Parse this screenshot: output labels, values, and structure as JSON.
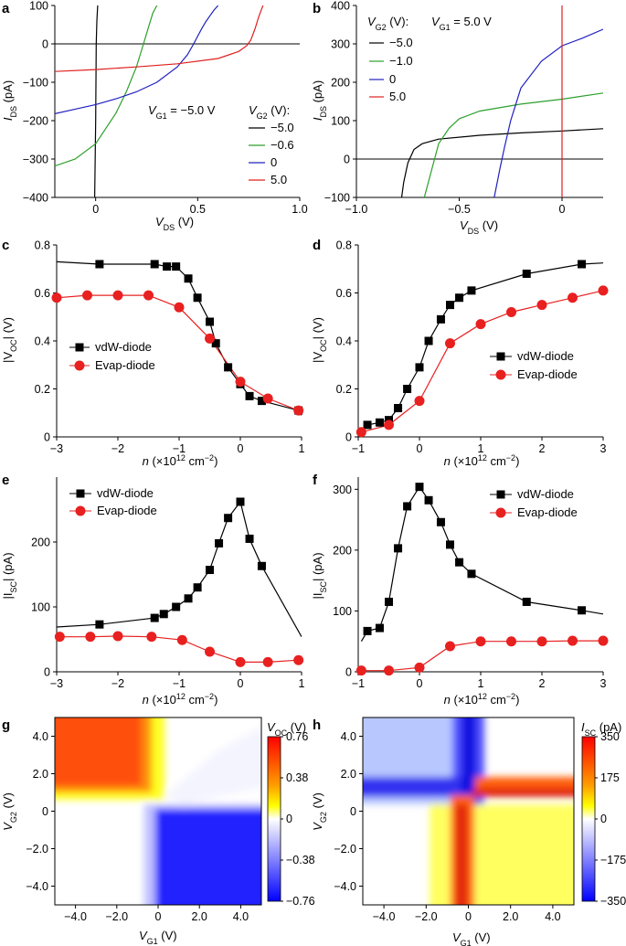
{
  "panels": {
    "a": {
      "letter": "a",
      "xlabel_main": "V",
      "xlabel_sub": "DS",
      "xlabel_unit": " (V)",
      "ylabel_main": "I",
      "ylabel_sub": "DS",
      "ylabel_unit": " (pA)",
      "xticks": [
        "0",
        "0.5",
        "1.0"
      ],
      "yticks": [
        "100",
        "0",
        "−100",
        "−200",
        "−300",
        "−400"
      ],
      "annotation_main": "V",
      "annotation_sub": "G1",
      "annotation_rest": " = −5.0 V",
      "legend_title_main": "V",
      "legend_title_sub": "G2",
      "legend_title_rest": " (V):",
      "legend": [
        "−5.0",
        "−0.6",
        "0",
        "5.0"
      ]
    },
    "b": {
      "letter": "b",
      "xlabel_main": "V",
      "xlabel_sub": "DS",
      "xlabel_unit": " (V)",
      "ylabel_main": "I",
      "ylabel_sub": "DS",
      "ylabel_unit": " (pA)",
      "xticks": [
        "−1.0",
        "−0.5",
        "0"
      ],
      "yticks": [
        "400",
        "300",
        "200",
        "100",
        "0",
        "−100"
      ],
      "annotation_main": "V",
      "annotation_sub": "G1",
      "annotation_rest": " = 5.0 V",
      "legend_title_main": "V",
      "legend_title_sub": "G2",
      "legend_title_rest": " (V):",
      "legend": [
        "−5.0",
        "−1.0",
        "0",
        "5.0"
      ]
    },
    "c": {
      "letter": "c",
      "xlabel_main": "n",
      "xlabel_rest": " (×10",
      "xlabel_sup": "12",
      "xlabel_rest2": " cm",
      "xlabel_sup2": "−2",
      "xlabel_end": ")",
      "ylabel": "|V",
      "ylabel_sub": "OC",
      "ylabel_rest": "| (V)",
      "xticks": [
        "−3",
        "−2",
        "−1",
        "0",
        "1"
      ],
      "yticks": [
        "0.8",
        "0.6",
        "0.4",
        "0.2",
        "0"
      ],
      "legend": [
        "vdW-diode",
        "Evap-diode"
      ]
    },
    "d": {
      "letter": "d",
      "xlabel_main": "n",
      "xlabel_rest": " (×10",
      "xlabel_sup": "12",
      "xlabel_rest2": " cm",
      "xlabel_sup2": "−2",
      "xlabel_end": ")",
      "ylabel": "|V",
      "ylabel_sub": "OC",
      "ylabel_rest": "| (V)",
      "xticks": [
        "−1",
        "0",
        "1",
        "2",
        "3"
      ],
      "yticks": [
        "0.8",
        "0.6",
        "0.4",
        "0.2",
        "0"
      ],
      "legend": [
        "vdW-diode",
        "Evap-diode"
      ]
    },
    "e": {
      "letter": "e",
      "xlabel_main": "n",
      "xlabel_rest": " (×10",
      "xlabel_sup": "12",
      "xlabel_rest2": " cm",
      "xlabel_sup2": "−2",
      "xlabel_end": ")",
      "ylabel": "|I",
      "ylabel_sub": "SC",
      "ylabel_rest": "| (pA)",
      "xticks": [
        "−3",
        "−2",
        "−1",
        "0",
        "1"
      ],
      "yticks": [
        "200",
        "100",
        "0"
      ],
      "legend": [
        "vdW-diode",
        "Evap-diode"
      ]
    },
    "f": {
      "letter": "f",
      "xlabel_main": "n",
      "xlabel_rest": " (×10",
      "xlabel_sup": "12",
      "xlabel_rest2": " cm",
      "xlabel_sup2": "−2",
      "xlabel_end": ")",
      "ylabel": "|I",
      "ylabel_sub": "SC",
      "ylabel_rest": "| (pA)",
      "xticks": [
        "−1",
        "0",
        "1",
        "2",
        "3"
      ],
      "yticks": [
        "300",
        "200",
        "100",
        "0"
      ],
      "legend": [
        "vdW-diode",
        "Evap-diode"
      ]
    },
    "g": {
      "letter": "g",
      "xlabel_main": "V",
      "xlabel_sub": "G1",
      "xlabel_unit": " (V)",
      "ylabel_main": "V",
      "ylabel_sub": "G2",
      "ylabel_unit": " (V)",
      "xticks": [
        "−4.0",
        "−2.0",
        "0",
        "2.0",
        "4.0"
      ],
      "yticks": [
        "4.0",
        "2.0",
        "0",
        "−2.0",
        "−4.0"
      ],
      "cbar_title_main": "V",
      "cbar_title_sub": "OC",
      "cbar_title_unit": " (V)",
      "cbar_ticks": [
        "0.76",
        "0.38",
        "0",
        "−0.38",
        "−0.76"
      ]
    },
    "h": {
      "letter": "h",
      "xlabel_main": "V",
      "xlabel_sub": "G1",
      "xlabel_unit": " (V)",
      "ylabel_main": "V",
      "ylabel_sub": "G2",
      "ylabel_unit": " (V)",
      "xticks": [
        "−4.0",
        "−2.0",
        "0",
        "2.0",
        "4.0"
      ],
      "yticks": [
        "4.0",
        "2.0",
        "0",
        "−2.0",
        "−4.0"
      ],
      "cbar_title_main": "I",
      "cbar_title_sub": "SC",
      "cbar_title_unit": " (pA)",
      "cbar_ticks": [
        "350",
        "175",
        "0",
        "−175",
        "−350"
      ]
    }
  },
  "colors": {
    "black": "#000000",
    "green": "#2ca02c",
    "blue": "#2020c0",
    "red": "#e02020",
    "marker_red": "#e82020"
  },
  "chart_data": [
    {
      "panel": "a",
      "type": "line",
      "xlim": [
        -0.2,
        1.0
      ],
      "ylim": [
        -400,
        100
      ],
      "series": [
        {
          "name": "−5.0",
          "color": "#000000",
          "x": [
            -0.005,
            0.0,
            0.003,
            0.006,
            0.01
          ],
          "y": [
            -400,
            -200,
            0,
            60,
            100
          ]
        },
        {
          "name": "−0.6",
          "color": "#2ca02c",
          "x": [
            -0.2,
            -0.1,
            0.0,
            0.1,
            0.15,
            0.2,
            0.22,
            0.24,
            0.26,
            0.28,
            0.3
          ],
          "y": [
            -318,
            -300,
            -260,
            -180,
            -125,
            -60,
            -25,
            10,
            45,
            80,
            100
          ]
        },
        {
          "name": "0",
          "color": "#2020c0",
          "x": [
            -0.2,
            -0.1,
            0.0,
            0.1,
            0.2,
            0.3,
            0.4,
            0.45,
            0.48,
            0.5,
            0.52,
            0.54,
            0.56,
            0.58,
            0.6
          ],
          "y": [
            -182,
            -170,
            -158,
            -143,
            -125,
            -100,
            -60,
            -28,
            0,
            20,
            40,
            58,
            73,
            88,
            100
          ]
        },
        {
          "name": "5.0",
          "color": "#e02020",
          "x": [
            -0.2,
            0.0,
            0.2,
            0.4,
            0.6,
            0.7,
            0.74,
            0.76,
            0.78,
            0.8,
            0.82
          ],
          "y": [
            -72,
            -67,
            -60,
            -52,
            -38,
            -20,
            -5,
            10,
            38,
            72,
            100
          ]
        }
      ]
    },
    {
      "panel": "b",
      "type": "line",
      "xlim": [
        -1.0,
        0.2
      ],
      "ylim": [
        -100,
        400
      ],
      "series": [
        {
          "name": "−5.0",
          "color": "#000000",
          "x": [
            -0.78,
            -0.77,
            -0.75,
            -0.72,
            -0.68,
            -0.6,
            -0.4,
            -0.2,
            0.0,
            0.2
          ],
          "y": [
            -100,
            -60,
            -10,
            25,
            40,
            52,
            62,
            68,
            73,
            79
          ]
        },
        {
          "name": "−1.0",
          "color": "#2ca02c",
          "x": [
            -0.67,
            -0.64,
            -0.62,
            -0.6,
            -0.55,
            -0.5,
            -0.4,
            -0.2,
            0.0,
            0.2
          ],
          "y": [
            -100,
            -40,
            0,
            40,
            80,
            105,
            125,
            143,
            156,
            172
          ]
        },
        {
          "name": "0",
          "color": "#2020c0",
          "x": [
            -0.33,
            -0.3,
            -0.28,
            -0.25,
            -0.2,
            -0.1,
            0.0,
            0.1,
            0.2
          ],
          "y": [
            -100,
            -20,
            30,
            100,
            185,
            255,
            295,
            315,
            338
          ]
        },
        {
          "name": "5.0",
          "color": "#e02020",
          "x": [
            0.0,
            0.0
          ],
          "y": [
            -100,
            400
          ]
        }
      ]
    },
    {
      "panel": "c",
      "type": "line",
      "xlim": [
        -3,
        1
      ],
      "ylim": [
        0,
        0.8
      ],
      "series": [
        {
          "name": "vdW-diode",
          "color": "#000000",
          "marker": "square",
          "x": [
            -2.3,
            -1.4,
            -1.2,
            -1.05,
            -0.85,
            -0.7,
            -0.5,
            -0.4,
            -0.2,
            0.0,
            0.15,
            0.35,
            0.95
          ],
          "y": [
            0.72,
            0.72,
            0.71,
            0.71,
            0.66,
            0.58,
            0.48,
            0.39,
            0.29,
            0.22,
            0.17,
            0.15,
            0.11
          ],
          "curve_x": [
            -3,
            -2.3,
            -1.4,
            -1.2,
            -1.05,
            -0.85,
            -0.7,
            -0.5,
            -0.4,
            -0.2,
            0.0,
            0.15,
            0.35,
            0.95,
            1.0
          ],
          "curve_y": [
            0.73,
            0.72,
            0.72,
            0.71,
            0.71,
            0.66,
            0.58,
            0.48,
            0.39,
            0.29,
            0.22,
            0.17,
            0.15,
            0.11,
            0.09
          ]
        },
        {
          "name": "Evap-diode",
          "color": "#e82020",
          "marker": "circle",
          "x": [
            -3.0,
            -2.5,
            -2.0,
            -1.5,
            -1.0,
            -0.5,
            0.0,
            0.45,
            0.95
          ],
          "y": [
            0.58,
            0.59,
            0.59,
            0.59,
            0.54,
            0.41,
            0.23,
            0.16,
            0.11
          ],
          "curve_x": [
            -3.0,
            -2.5,
            -2.0,
            -1.5,
            -1.0,
            -0.5,
            0.0,
            0.45,
            0.95,
            1.0
          ],
          "curve_y": [
            0.58,
            0.59,
            0.59,
            0.59,
            0.54,
            0.41,
            0.23,
            0.16,
            0.11,
            0.1
          ]
        }
      ]
    },
    {
      "panel": "d",
      "type": "line",
      "xlim": [
        -1,
        3
      ],
      "ylim": [
        0,
        0.8
      ],
      "series": [
        {
          "name": "vdW-diode",
          "color": "#000000",
          "marker": "square",
          "x": [
            -0.85,
            -0.65,
            -0.5,
            -0.35,
            -0.2,
            0.0,
            0.15,
            0.35,
            0.5,
            0.65,
            0.85,
            1.75,
            2.65
          ],
          "y": [
            0.05,
            0.06,
            0.07,
            0.12,
            0.2,
            0.29,
            0.4,
            0.49,
            0.55,
            0.58,
            0.61,
            0.68,
            0.72
          ],
          "curve_x": [
            -1.0,
            -0.85,
            -0.65,
            -0.5,
            -0.35,
            -0.2,
            0.0,
            0.15,
            0.35,
            0.5,
            0.65,
            0.85,
            1.75,
            2.65,
            3.0
          ],
          "curve_y": [
            0.02,
            0.05,
            0.06,
            0.07,
            0.12,
            0.2,
            0.29,
            0.4,
            0.49,
            0.55,
            0.58,
            0.61,
            0.68,
            0.72,
            0.725
          ]
        },
        {
          "name": "Evap-diode",
          "color": "#e82020",
          "marker": "circle",
          "x": [
            -0.95,
            -0.5,
            0.0,
            0.5,
            1.0,
            1.5,
            2.0,
            2.5,
            3.0
          ],
          "y": [
            0.02,
            0.05,
            0.15,
            0.39,
            0.47,
            0.52,
            0.55,
            0.58,
            0.61
          ],
          "curve_x": [
            -0.95,
            -0.5,
            0.0,
            0.5,
            1.0,
            1.5,
            2.0,
            2.5,
            3.0
          ],
          "curve_y": [
            0.02,
            0.05,
            0.15,
            0.39,
            0.47,
            0.52,
            0.55,
            0.58,
            0.61
          ]
        }
      ]
    },
    {
      "panel": "e",
      "type": "line",
      "xlim": [
        -3,
        1
      ],
      "ylim": [
        0,
        300
      ],
      "series": [
        {
          "name": "vdW-diode",
          "color": "#000000",
          "marker": "square",
          "x": [
            -2.3,
            -1.4,
            -1.25,
            -1.05,
            -0.85,
            -0.7,
            -0.5,
            -0.35,
            -0.2,
            0.0,
            0.15,
            0.35
          ],
          "y": [
            73,
            83,
            89,
            100,
            113,
            130,
            157,
            198,
            237,
            262,
            205,
            163
          ],
          "curve_x": [
            -3.0,
            -2.3,
            -1.4,
            -1.25,
            -1.05,
            -0.85,
            -0.7,
            -0.5,
            -0.35,
            -0.2,
            0.0,
            0.15,
            0.35,
            1.0
          ],
          "curve_y": [
            69,
            73,
            83,
            89,
            100,
            113,
            130,
            157,
            198,
            237,
            262,
            205,
            163,
            54
          ]
        },
        {
          "name": "Evap-diode",
          "color": "#e82020",
          "marker": "circle",
          "x": [
            -2.95,
            -2.45,
            -2.0,
            -1.45,
            -0.95,
            -0.5,
            0.0,
            0.45,
            0.95
          ],
          "y": [
            54,
            54,
            55,
            54,
            49,
            31,
            15,
            15,
            18
          ],
          "curve_x": [
            -2.95,
            -2.45,
            -2.0,
            -1.45,
            -0.95,
            -0.5,
            0.0,
            0.45,
            0.95,
            1.0
          ],
          "curve_y": [
            54,
            54,
            55,
            54,
            49,
            31,
            15,
            15,
            18,
            18
          ]
        }
      ]
    },
    {
      "panel": "f",
      "type": "line",
      "xlim": [
        -1,
        3
      ],
      "ylim": [
        0,
        320
      ],
      "series": [
        {
          "name": "vdW-diode",
          "color": "#000000",
          "marker": "square",
          "x": [
            -0.85,
            -0.65,
            -0.5,
            -0.35,
            -0.2,
            0.0,
            0.15,
            0.35,
            0.5,
            0.65,
            0.85,
            1.75,
            2.65
          ],
          "y": [
            67,
            72,
            115,
            203,
            272,
            304,
            282,
            246,
            209,
            180,
            161,
            115,
            101
          ],
          "curve_x": [
            -0.95,
            -0.85,
            -0.65,
            -0.5,
            -0.35,
            -0.2,
            0.0,
            0.15,
            0.35,
            0.5,
            0.65,
            0.85,
            1.75,
            2.65,
            3.0
          ],
          "curve_y": [
            50,
            67,
            72,
            115,
            203,
            272,
            304,
            282,
            246,
            209,
            180,
            161,
            115,
            101,
            95
          ]
        },
        {
          "name": "Evap-diode",
          "color": "#e82020",
          "marker": "circle",
          "x": [
            -0.95,
            -0.5,
            0.0,
            0.5,
            1.0,
            1.5,
            2.0,
            2.5,
            3.0
          ],
          "y": [
            2,
            2,
            7,
            42,
            50,
            50,
            50,
            51,
            51
          ],
          "curve_x": [
            -0.95,
            -0.5,
            0.0,
            0.5,
            1.0,
            1.5,
            2.0,
            2.5,
            3.0
          ],
          "curve_y": [
            2,
            2,
            7,
            42,
            50,
            50,
            50,
            51,
            51
          ]
        }
      ]
    },
    {
      "panel": "g",
      "type": "heatmap",
      "x_range": [
        -5,
        5
      ],
      "y_range": [
        -5,
        5
      ],
      "value_range": [
        -0.76,
        0.76
      ],
      "colormap": [
        "#0000ff",
        "#ffffff",
        "#ffff00",
        "#ff0000"
      ],
      "regions": [
        {
          "region": "V_G1 < 0, V_G2 > 0",
          "value": 0.7
        },
        {
          "region": "V_G1 > 0, V_G2 < 0",
          "value": -0.7
        },
        {
          "region": "diagonal V_G1 ≈ V_G2",
          "value": 0
        }
      ]
    },
    {
      "panel": "h",
      "type": "heatmap",
      "x_range": [
        -5,
        5
      ],
      "y_range": [
        -5,
        5
      ],
      "value_range": [
        -350,
        350
      ],
      "colormap": [
        "#0000ff",
        "#ffffff",
        "#ffff00",
        "#ff0000"
      ],
      "regions": [
        {
          "region": "V_G1 ≈ 0, V_G2 > 0",
          "value": -300
        },
        {
          "region": "V_G1 < 0, V_G2 ≈ 0",
          "value": -300
        },
        {
          "region": "V_G1 > 0, V_G2 ≈ 0",
          "value": 330
        },
        {
          "region": "V_G1 ≈ −0.5, V_G2 < 0",
          "value": 330
        },
        {
          "region": "V_G1 > 0, V_G2 < 0",
          "value": 150
        }
      ]
    }
  ]
}
